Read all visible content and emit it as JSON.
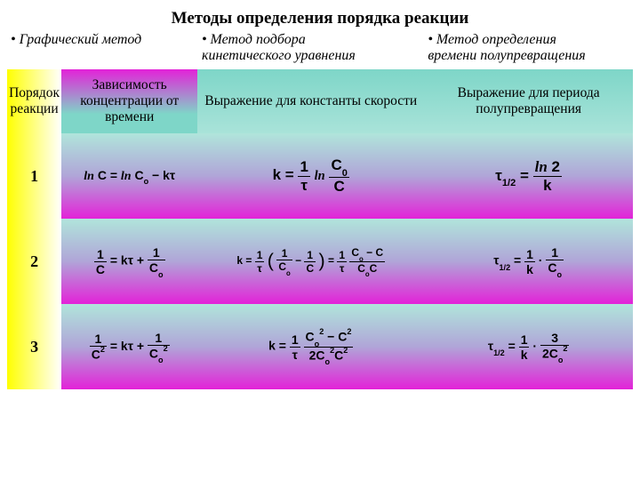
{
  "title": "Методы определения порядка реакции",
  "methods": {
    "m1": "• Графический метод",
    "m2a": "• Метод подбора",
    "m2b": "кинетического уравнения",
    "m3a": "• Метод определения",
    "m3b": "времени полупревращения"
  },
  "headers": {
    "order": "Порядок реакции",
    "dependence": "Зависимость концентрации от времени",
    "rate": "Выражение для константы скорости",
    "half": "Выражение для периода полупревращения"
  },
  "rows": {
    "r1": {
      "order": "1"
    },
    "r2": {
      "order": "2"
    },
    "r3": {
      "order": "3"
    }
  },
  "colors": {
    "yellow": "#ffff00",
    "magenta": "#e322d8",
    "teal": "#7ed6c8",
    "white": "#ffffff"
  }
}
